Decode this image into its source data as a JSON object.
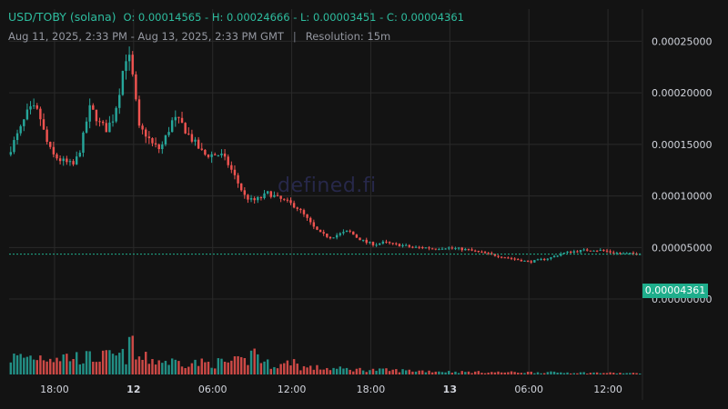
{
  "header": {
    "symbol": "USD/TOBY (solana)",
    "ohlc": "O: 0.00014565 - H: 0.00024666 - L: 0.00003451 - C: 0.00004361",
    "range": "Aug 11, 2025, 2:33 PM - Aug 13, 2025, 2:33 PM GMT",
    "separator": "|",
    "resolution": "Resolution: 15m"
  },
  "watermark": "defined.fi",
  "last_price_label": "0.00004361",
  "colors": {
    "up": "#26a69a",
    "down": "#ef5350",
    "background": "#131313",
    "grid": "#2a2a2a",
    "last_price": "#1fae8c"
  },
  "chart_data": {
    "type": "candlestick",
    "resolution": "15m",
    "yaxis": {
      "ticks": [
        "0.00000000",
        "0.00005000",
        "0.00010000",
        "0.00015000",
        "0.00020000",
        "0.00025000"
      ],
      "ylim": [
        -2.6e-06,
        0.0002812
      ]
    },
    "xaxis": {
      "ticks": [
        {
          "label": "18:00",
          "bold": false,
          "hours": 3.45
        },
        {
          "label": "12",
          "bold": true,
          "hours": 9.45
        },
        {
          "label": "06:00",
          "bold": false,
          "hours": 15.45
        },
        {
          "label": "12:00",
          "bold": false,
          "hours": 21.45
        },
        {
          "label": "18:00",
          "bold": false,
          "hours": 27.45
        },
        {
          "label": "13",
          "bold": true,
          "hours": 33.45
        },
        {
          "label": "06:00",
          "bold": false,
          "hours": 39.45
        },
        {
          "label": "12:00",
          "bold": false,
          "hours": 45.45
        }
      ],
      "start": "Aug 11, 2025, 2:33 PM",
      "end": "Aug 13, 2025, 2:33 PM"
    },
    "last_close": 4.361e-05,
    "path": [
      [
        0,
        0.00014
      ],
      [
        0.4,
        0.00015
      ],
      [
        1.0,
        0.000165
      ],
      [
        1.5,
        0.00018
      ],
      [
        1.9,
        0.000185
      ],
      [
        2.4,
        0.00018
      ],
      [
        2.9,
        0.000155
      ],
      [
        3.4,
        0.00014
      ],
      [
        4.0,
        0.000135
      ],
      [
        4.5,
        0.000132
      ],
      [
        5.0,
        0.00013
      ],
      [
        5.4,
        0.00014
      ],
      [
        5.8,
        0.00016
      ],
      [
        6.2,
        0.000185
      ],
      [
        6.6,
        0.00018
      ],
      [
        7.0,
        0.00017
      ],
      [
        7.5,
        0.000165
      ],
      [
        8.0,
        0.000175
      ],
      [
        8.4,
        0.000195
      ],
      [
        8.8,
        0.000225
      ],
      [
        9.1,
        0.00024
      ],
      [
        9.4,
        0.000225
      ],
      [
        9.7,
        0.000195
      ],
      [
        10.0,
        0.000165
      ],
      [
        10.5,
        0.00016
      ],
      [
        11.0,
        0.00015
      ],
      [
        11.6,
        0.000145
      ],
      [
        12.1,
        0.00016
      ],
      [
        12.6,
        0.000175
      ],
      [
        13.2,
        0.00017
      ],
      [
        13.7,
        0.00016
      ],
      [
        14.3,
        0.00015
      ],
      [
        14.9,
        0.00014
      ],
      [
        15.5,
        0.00014
      ],
      [
        16.2,
        0.00014
      ],
      [
        16.8,
        0.00013
      ],
      [
        17.4,
        0.000115
      ],
      [
        18.0,
        0.0001
      ],
      [
        18.6,
        9.5e-05
      ],
      [
        19.2,
        9.8e-05
      ],
      [
        19.8,
        0.000103
      ],
      [
        20.5,
        9.8e-05
      ],
      [
        21.2,
        9.4e-05
      ],
      [
        21.9,
        9e-05
      ],
      [
        22.6,
        8e-05
      ],
      [
        23.2,
        7e-05
      ],
      [
        23.8,
        6.3e-05
      ],
      [
        24.5,
        6e-05
      ],
      [
        25.2,
        6.3e-05
      ],
      [
        25.9,
        6.6e-05
      ],
      [
        26.5,
        6e-05
      ],
      [
        27.2,
        5.5e-05
      ],
      [
        27.9,
        5.3e-05
      ],
      [
        28.6,
        5.5e-05
      ],
      [
        29.3,
        5.3e-05
      ],
      [
        30.0,
        5.2e-05
      ],
      [
        30.8,
        5e-05
      ],
      [
        31.6,
        5e-05
      ],
      [
        32.4,
        4.9e-05
      ],
      [
        33.2,
        5e-05
      ],
      [
        34.0,
        4.9e-05
      ],
      [
        34.8,
        4.8e-05
      ],
      [
        35.6,
        4.6e-05
      ],
      [
        36.4,
        4.4e-05
      ],
      [
        37.2,
        4.2e-05
      ],
      [
        38.0,
        4e-05
      ],
      [
        38.8,
        3.8e-05
      ],
      [
        39.6,
        3.6e-05
      ],
      [
        40.4,
        3.8e-05
      ],
      [
        41.2,
        4e-05
      ],
      [
        42.0,
        4.4e-05
      ],
      [
        42.8,
        4.6e-05
      ],
      [
        43.6,
        4.7e-05
      ],
      [
        44.4,
        4.8e-05
      ],
      [
        45.2,
        4.7e-05
      ],
      [
        46.0,
        4.5e-05
      ],
      [
        46.8,
        4.4e-05
      ],
      [
        47.6,
        4.4e-05
      ]
    ],
    "volume_profile": [
      [
        0,
        0.45
      ],
      [
        3,
        0.5
      ],
      [
        6,
        0.45
      ],
      [
        9,
        0.5
      ],
      [
        9.3,
        1.0
      ],
      [
        9.6,
        0.45
      ],
      [
        12,
        0.35
      ],
      [
        15,
        0.3
      ],
      [
        18,
        0.35
      ],
      [
        18.7,
        0.7
      ],
      [
        19.3,
        0.3
      ],
      [
        21,
        0.25
      ],
      [
        21.5,
        0.45
      ],
      [
        22,
        0.2
      ],
      [
        25,
        0.15
      ],
      [
        28,
        0.12
      ],
      [
        31,
        0.1
      ],
      [
        34,
        0.07
      ],
      [
        37,
        0.06
      ],
      [
        40,
        0.06
      ],
      [
        43,
        0.05
      ],
      [
        46,
        0.04
      ],
      [
        48,
        0.03
      ]
    ]
  }
}
